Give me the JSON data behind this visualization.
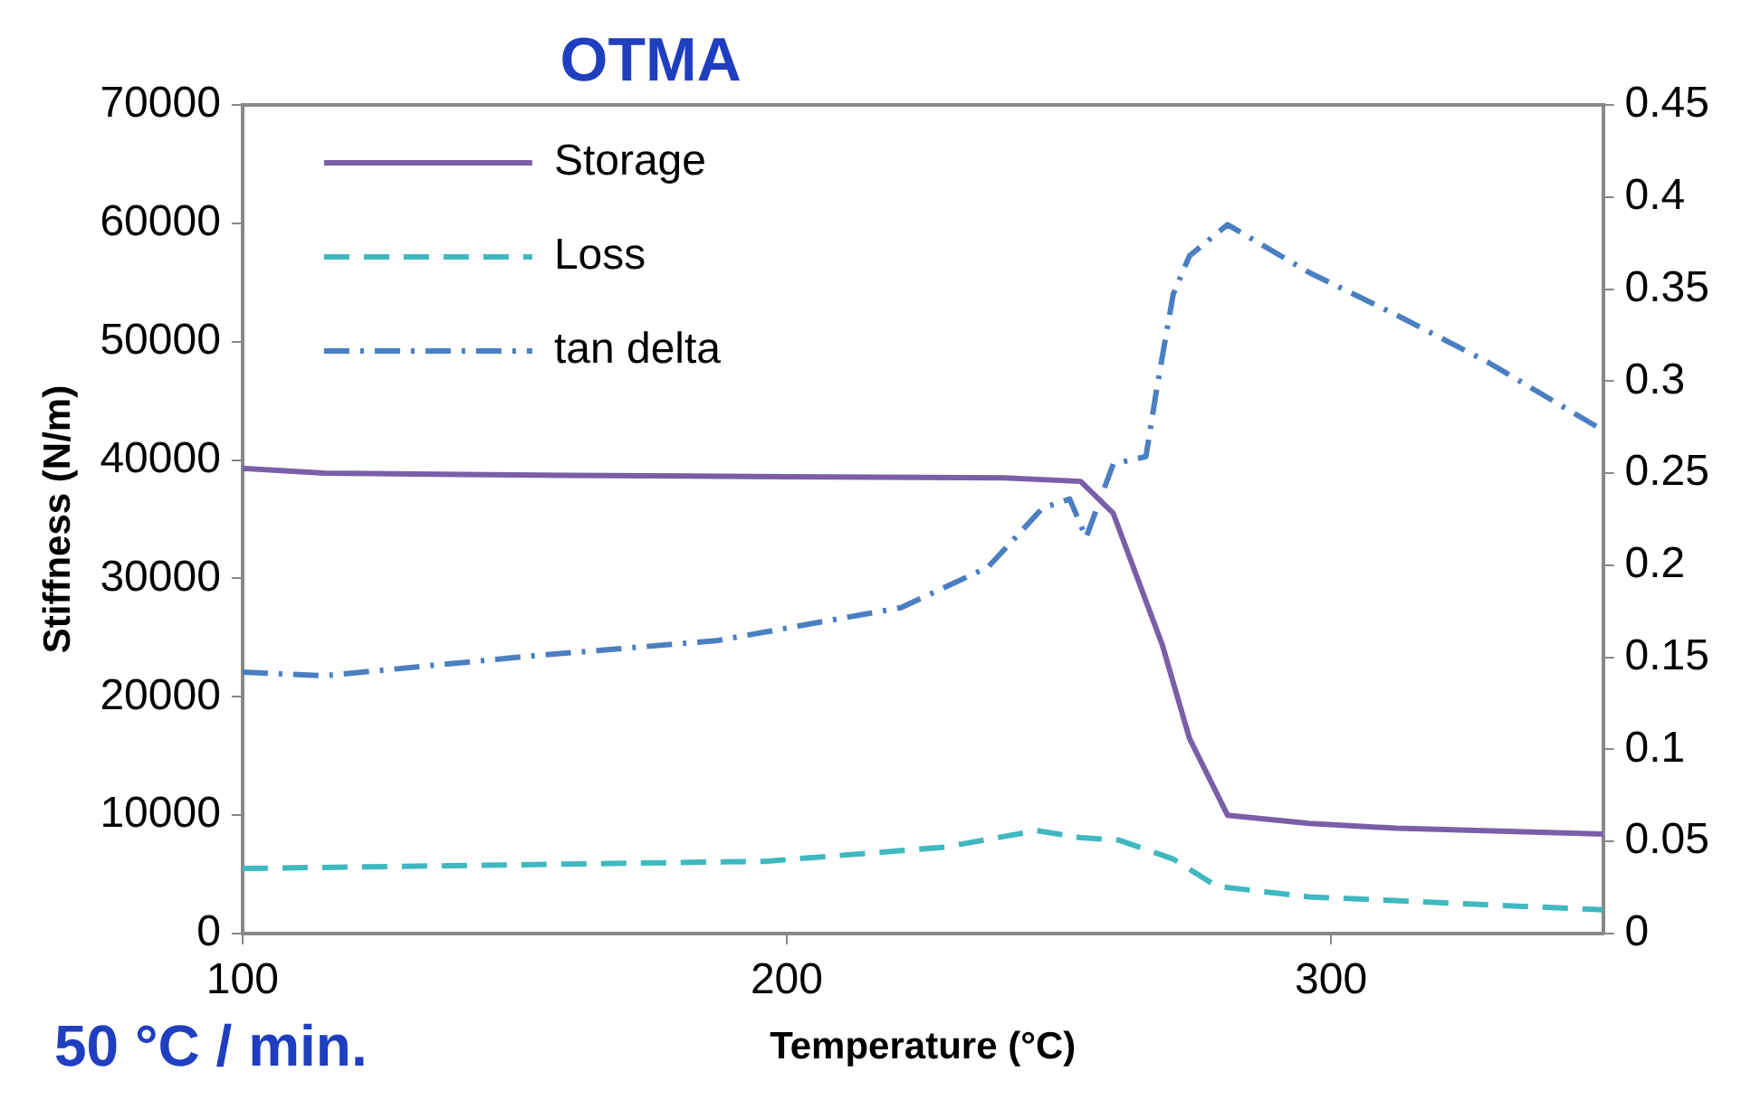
{
  "chart_data": {
    "type": "line",
    "title": "OTMA",
    "xlabel": "Temperature (°C)",
    "ylabel": "Stiffness (N/m)",
    "annotations": [
      "50 °C / min."
    ],
    "xlim": [
      100,
      350
    ],
    "xticks": [
      100,
      200,
      300
    ],
    "ylim": [
      0,
      70000
    ],
    "yticks": [
      0,
      10000,
      20000,
      30000,
      40000,
      50000,
      60000,
      70000
    ],
    "y2lim": [
      0,
      0.45
    ],
    "y2ticks": [
      0,
      0.05,
      0.1,
      0.15,
      0.2,
      0.25,
      0.3,
      0.35,
      0.4,
      0.45
    ],
    "grid": false,
    "legend": "top left",
    "marker": "none",
    "series": [
      {
        "name": "Storage",
        "color": "#7a5fa8",
        "line_style": "solid",
        "x": [
          100,
          115,
          160,
          200,
          240,
          254,
          260,
          269,
          274,
          281,
          296,
          312,
          350
        ],
        "values": [
          39300,
          38900,
          38700,
          38600,
          38500,
          38200,
          35500,
          24400,
          16500,
          10000,
          9300,
          8900,
          8400
        ]
      },
      {
        "name": "Loss",
        "color": "#3fb8c0",
        "line_style": "dashed",
        "x": [
          100,
          150,
          196,
          229,
          246,
          254,
          261,
          271,
          279,
          296,
          350
        ],
        "values": [
          5500,
          5800,
          6100,
          7300,
          8700,
          8100,
          7900,
          6300,
          4000,
          3100,
          2000
        ]
      },
      {
        "name": "tan delta",
        "color": "#4a7fc1",
        "line_style": "dashdot",
        "axis": "y2",
        "x": [
          100,
          115,
          154,
          187,
          221,
          237,
          247,
          252,
          255,
          260,
          266,
          268,
          271,
          274,
          281,
          296,
          312,
          329,
          349
        ],
        "values": [
          0.142,
          0.14,
          0.151,
          0.159,
          0.177,
          0.199,
          0.231,
          0.236,
          0.215,
          0.255,
          0.259,
          0.296,
          0.347,
          0.368,
          0.385,
          0.359,
          0.336,
          0.31,
          0.275
        ]
      }
    ]
  }
}
